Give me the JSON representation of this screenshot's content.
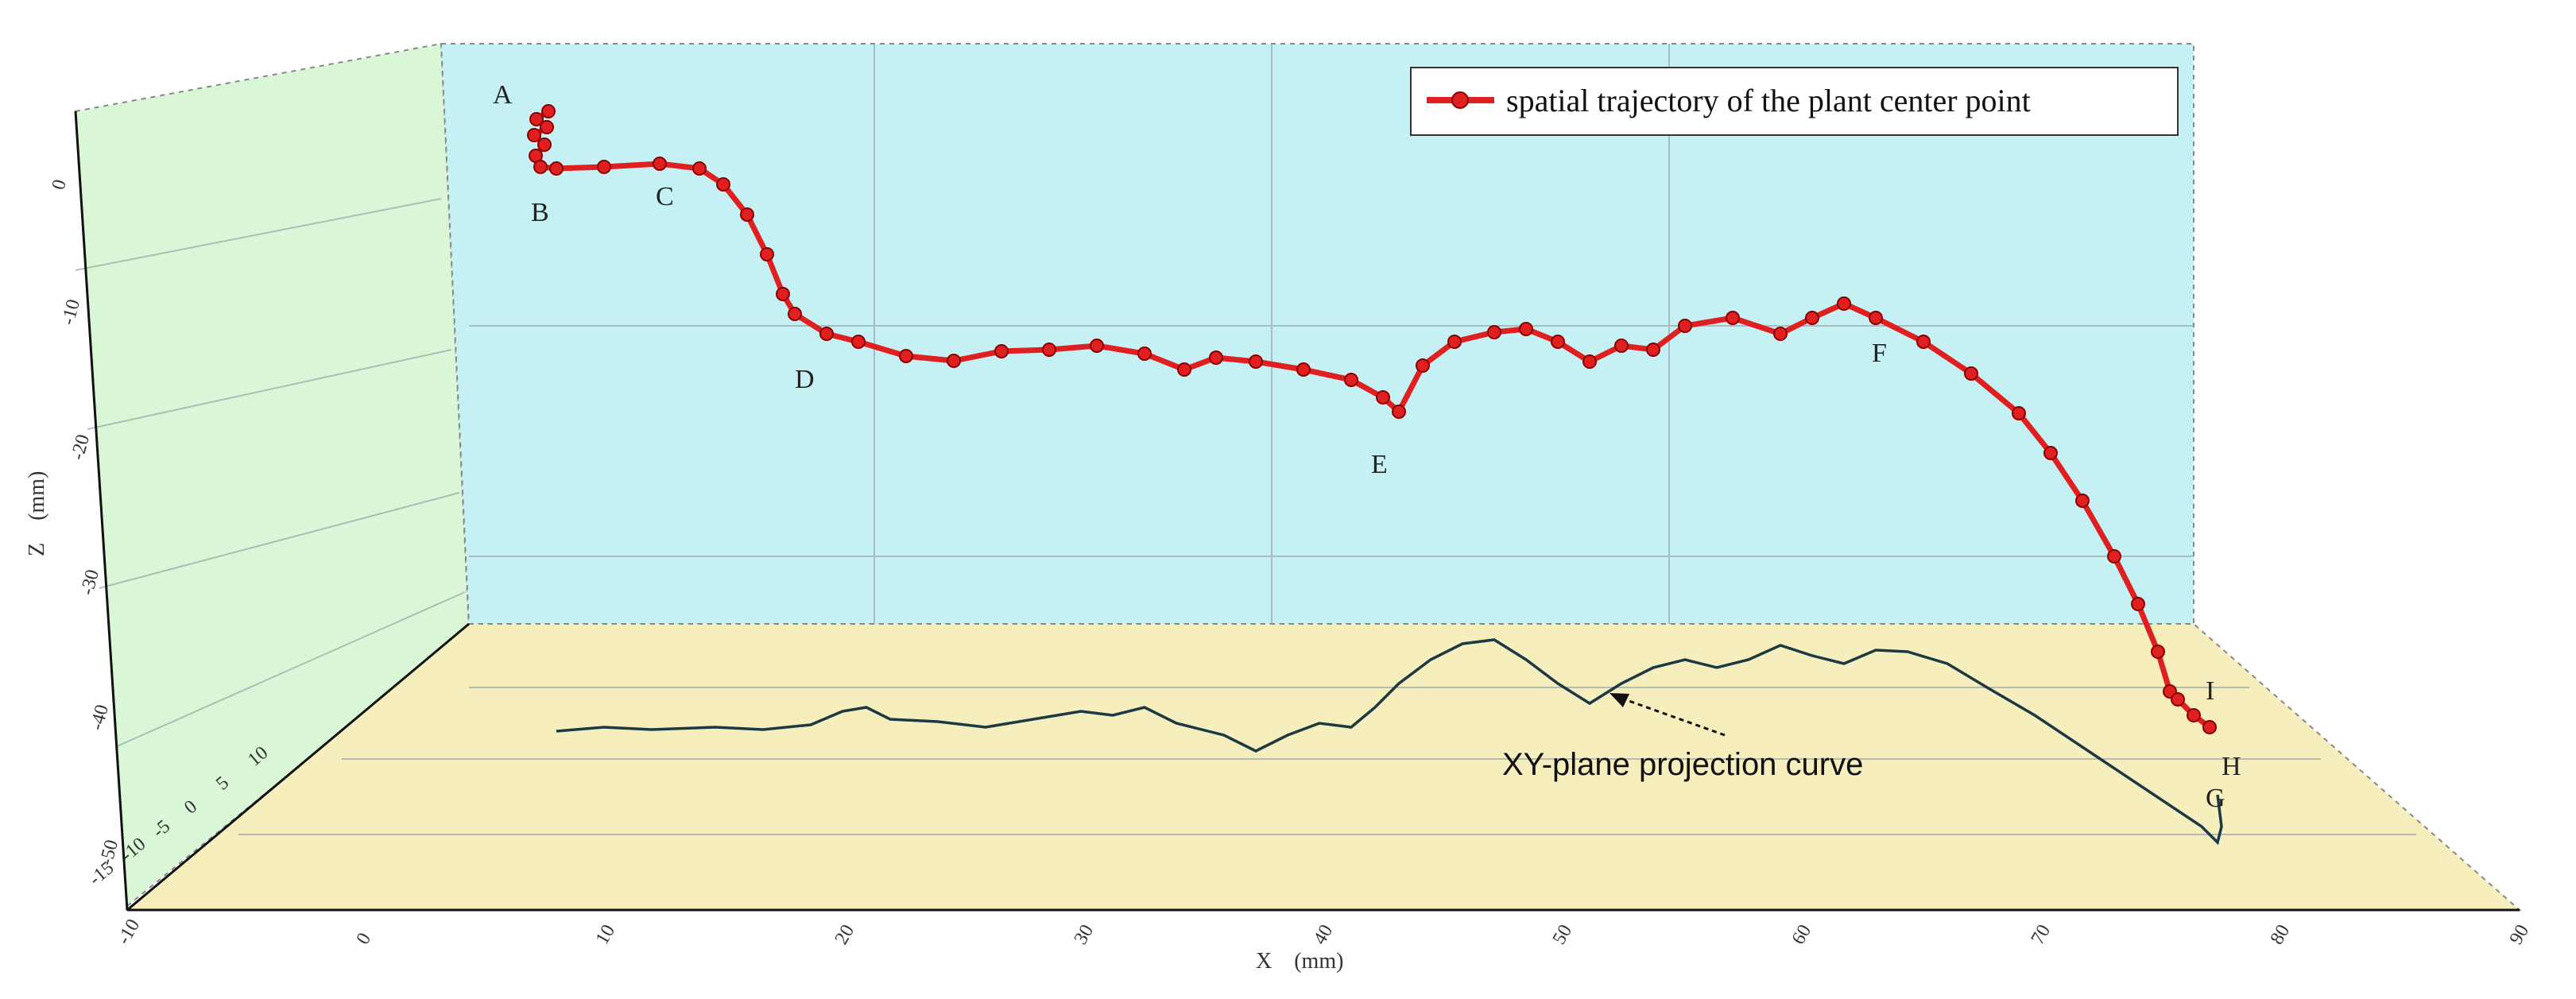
{
  "chart_data": {
    "type": "line",
    "subtype": "3d-trajectory",
    "legend": {
      "position": "top-right",
      "entries": [
        "spatial trajectory of the plant center point"
      ]
    },
    "annotations": [
      "XY-plane projection curve"
    ],
    "axes": {
      "x": {
        "label": "X　(mm)",
        "ticks": [
          "-10",
          "0",
          "10",
          "20",
          "30",
          "40",
          "50",
          "60",
          "70",
          "80",
          "90"
        ]
      },
      "y": {
        "ticks": [
          "-15",
          "-10",
          "-5",
          "0",
          "5",
          "10"
        ]
      },
      "z": {
        "label": "Z　(mm)",
        "ticks": [
          "0",
          "-10",
          "-20",
          "-30",
          "-40",
          "-50"
        ]
      }
    },
    "series": [
      {
        "name": "spatial trajectory of the plant center point",
        "color": "#e02020",
        "points": [
          {
            "label": "A",
            "x": 5.5,
            "z": 2.0
          },
          {
            "label": "B",
            "x": 5.5,
            "z": -2.5
          },
          {
            "label": "C",
            "x": 10.5,
            "z": -2.0
          },
          {
            "label": "D",
            "x": 16.0,
            "z": -13.5
          },
          {
            "label": "E",
            "x": 37.5,
            "z": -19.0
          },
          {
            "label": "F",
            "x": 66.0,
            "z": -11.0
          },
          {
            "label": "I",
            "x": 79.5,
            "z": -44.0
          },
          {
            "label": "H",
            "x": 81.0,
            "z": -48.0
          },
          {
            "label": "G",
            "x": 80.5,
            "z": -47.0
          }
        ]
      }
    ],
    "colors": {
      "trajectory": "#e02020",
      "projection": "#1d3a44",
      "projection_highlight": "#35c6d6",
      "back_wall": "#c6f1f4",
      "side_wall": "#d9f6d6",
      "floor": "#f6eebc"
    }
  }
}
